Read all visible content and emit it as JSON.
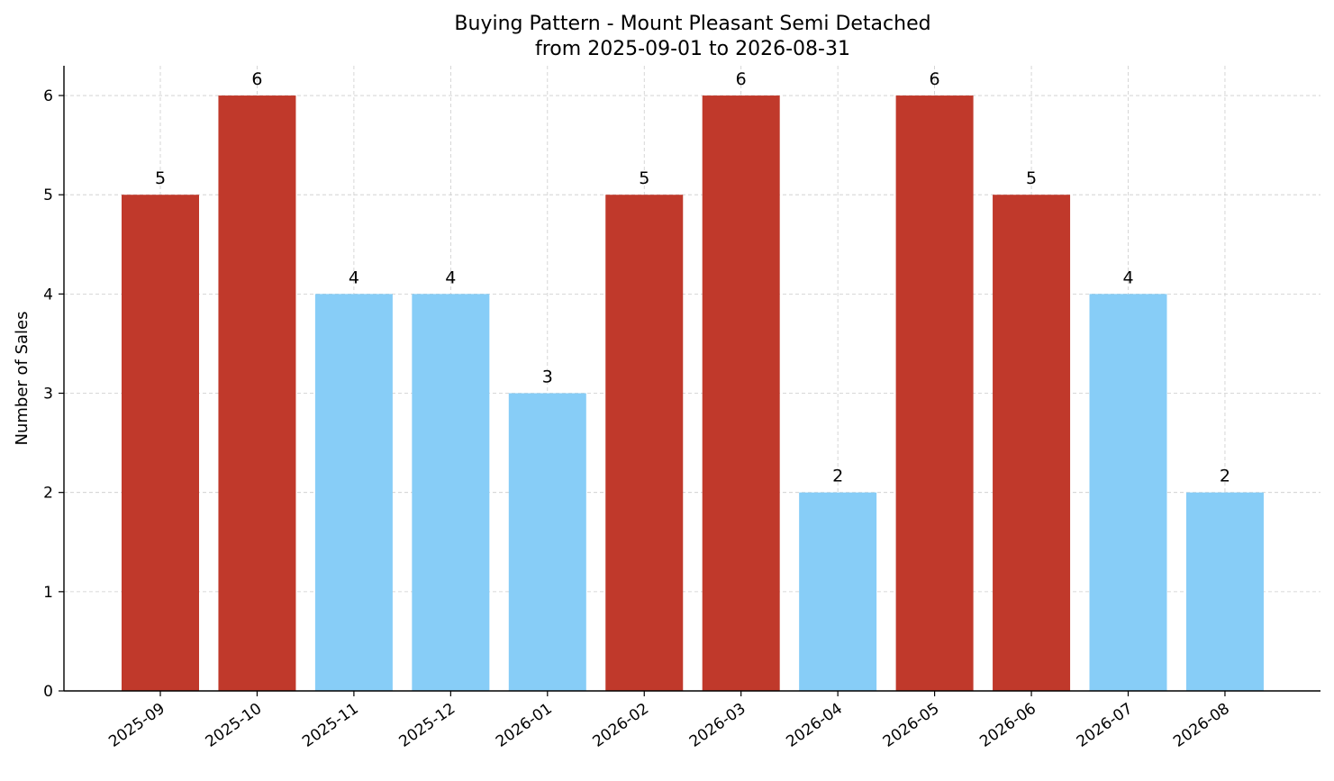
{
  "chart_data": {
    "type": "bar",
    "title": "Buying Pattern - Mount Pleasant Semi Detached",
    "subtitle": "from 2025-09-01 to 2026-08-31",
    "xlabel": "",
    "ylabel": "Number of Sales",
    "categories": [
      "2025-09",
      "2025-10",
      "2025-11",
      "2025-12",
      "2026-01",
      "2026-02",
      "2026-03",
      "2026-04",
      "2026-05",
      "2026-06",
      "2026-07",
      "2026-08"
    ],
    "values": [
      5,
      6,
      4,
      4,
      3,
      5,
      6,
      2,
      6,
      5,
      4,
      2
    ],
    "ylim": [
      0,
      6.3
    ],
    "yticks": [
      0,
      1,
      2,
      3,
      4,
      5,
      6
    ],
    "grid": true,
    "bar_colors": {
      "high": "#c0392b",
      "low": "#87cdf7"
    },
    "bar_color_assignment": [
      "high",
      "high",
      "low",
      "low",
      "low",
      "high",
      "high",
      "low",
      "high",
      "high",
      "low",
      "low"
    ]
  }
}
